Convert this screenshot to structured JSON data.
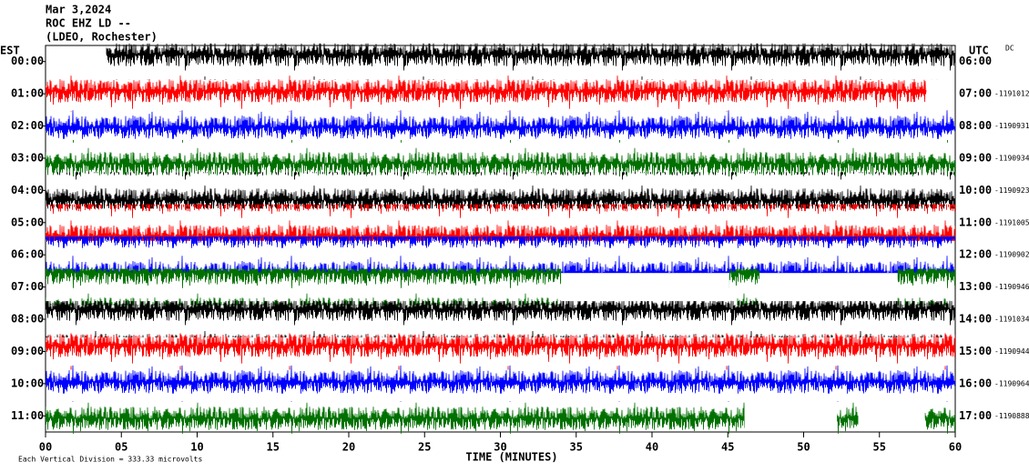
{
  "chart_data": {
    "type": "helicorder",
    "title": "Mar 3,2024",
    "station": "ROC EHZ LD --",
    "network": "(LDEO, Rochester)",
    "left_axis_label": "EST",
    "right_axis_label": "UTC",
    "corner_note": "DC",
    "xlabel": "TIME (MINUTES)",
    "footnote": "Each Vertical Division =  333.33 microvolts",
    "xlim": [
      0,
      60
    ],
    "xticks": [
      {
        "value": 0,
        "label": "00"
      },
      {
        "value": 5,
        "label": "05"
      },
      10,
      15,
      20,
      25,
      30,
      35,
      40,
      45,
      50,
      55,
      60
    ],
    "rows": [
      {
        "est": "00:00",
        "utc": "06:00",
        "color": "#000000",
        "segments": [
          [
            4,
            60
          ]
        ]
      },
      {
        "est": "01:00",
        "utc": "07:00",
        "count": "-1191012",
        "color": "#ff0000",
        "segments": [
          [
            0,
            58.1
          ]
        ]
      },
      {
        "est": "02:00",
        "utc": "08:00",
        "count": "-1190931",
        "color": "#0000ff",
        "segments": [
          [
            0,
            60
          ]
        ]
      },
      {
        "est": "03:00",
        "utc": "09:00",
        "count": "-1190934",
        "color": "#007000",
        "segments": [
          [
            0,
            60
          ]
        ]
      },
      {
        "est": "04:00",
        "utc": "10:00",
        "count": "-1190923",
        "color": "#000000",
        "segments": [
          [
            0,
            60
          ]
        ]
      },
      {
        "est": "05:00",
        "utc": "11:00",
        "count": "-1191005",
        "color": "#ff0000",
        "segments": [
          [
            0,
            60
          ]
        ]
      },
      {
        "est": "06:00",
        "utc": "12:00",
        "count": "-1190902",
        "color": "#0000ff",
        "segments": [
          [
            0,
            60
          ]
        ]
      },
      {
        "est": "07:00",
        "utc": "13:00",
        "count": "-1190946",
        "color": "#007000",
        "segments": [
          [
            0,
            34
          ],
          [
            45.1,
            47.1
          ],
          [
            56.2,
            60
          ]
        ]
      },
      {
        "est": "08:00",
        "utc": "14:00",
        "count": "-1191034",
        "color": "#000000",
        "segments": [
          [
            0,
            60
          ]
        ]
      },
      {
        "est": "09:00",
        "utc": "15:00",
        "count": "-1190944",
        "color": "#ff0000",
        "segments": [
          [
            0,
            60
          ]
        ]
      },
      {
        "est": "10:00",
        "utc": "16:00",
        "count": "-1190964",
        "color": "#0000ff",
        "segments": [
          [
            0,
            60
          ]
        ]
      },
      {
        "est": "11:00",
        "utc": "17:00",
        "count": "-1190888",
        "color": "#007000",
        "segments": [
          [
            0,
            46.1
          ],
          [
            52.2,
            53.6
          ],
          [
            58,
            60
          ]
        ]
      }
    ]
  }
}
